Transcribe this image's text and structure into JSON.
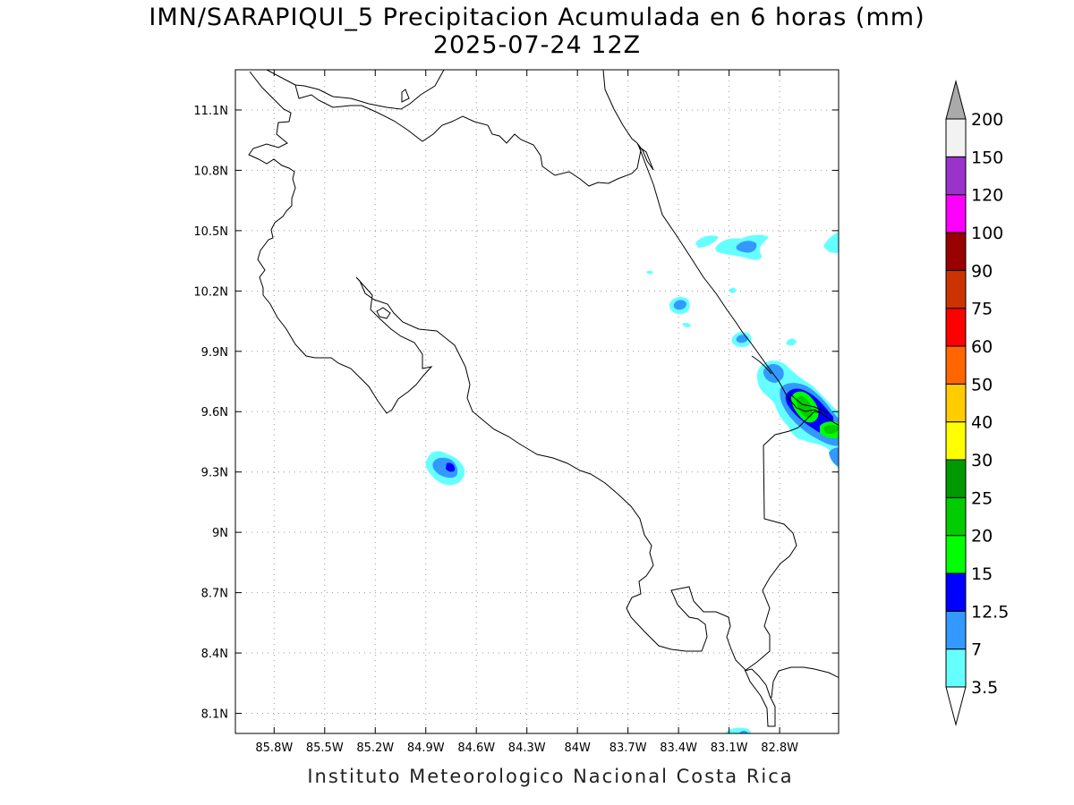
{
  "title": {
    "line1": "IMN/SARAPIQUI_5 Precipitacion Acumulada en 6 horas (mm)",
    "line2": "2025-07-24 12Z"
  },
  "footer": "Instituto Meteorologico Nacional Costa Rica",
  "map": {
    "lon_range": [
      -86.03,
      -82.45
    ],
    "lat_range": [
      8.0,
      11.3
    ],
    "lon_ticks": [
      {
        "value": -85.8,
        "label": "85.8W"
      },
      {
        "value": -85.5,
        "label": "85.5W"
      },
      {
        "value": -85.2,
        "label": "85.2W"
      },
      {
        "value": -84.9,
        "label": "84.9W"
      },
      {
        "value": -84.6,
        "label": "84.6W"
      },
      {
        "value": -84.3,
        "label": "84.3W"
      },
      {
        "value": -84.0,
        "label": "84W"
      },
      {
        "value": -83.7,
        "label": "83.7W"
      },
      {
        "value": -83.4,
        "label": "83.4W"
      },
      {
        "value": -83.1,
        "label": "83.1W"
      },
      {
        "value": -82.8,
        "label": "82.8W"
      }
    ],
    "lat_ticks": [
      {
        "value": 11.1,
        "label": "11.1N"
      },
      {
        "value": 10.8,
        "label": "10.8N"
      },
      {
        "value": 10.5,
        "label": "10.5N"
      },
      {
        "value": 10.2,
        "label": "10.2N"
      },
      {
        "value": 9.9,
        "label": "9.9N"
      },
      {
        "value": 9.6,
        "label": "9.6N"
      },
      {
        "value": 9.3,
        "label": "9.3N"
      },
      {
        "value": 9.0,
        "label": "9N"
      },
      {
        "value": 8.7,
        "label": "8.7N"
      },
      {
        "value": 8.4,
        "label": "8.4N"
      },
      {
        "value": 8.1,
        "label": "8.1N"
      }
    ],
    "grid": "dotted"
  },
  "colorbar": {
    "colors": [
      "#66ffff",
      "#3399ff",
      "#0000ff",
      "#00ff00",
      "#00cc00",
      "#009900",
      "#ffff00",
      "#ffcc00",
      "#ff6600",
      "#ff0000",
      "#cc3300",
      "#990000",
      "#ff00ff",
      "#9933cc",
      "#f2f2f2",
      "#aaaaaa"
    ],
    "labels": [
      "3.5",
      "7",
      "12.5",
      "15",
      "20",
      "25",
      "30",
      "40",
      "50",
      "60",
      "75",
      "90",
      "100",
      "120",
      "150",
      "200"
    ]
  },
  "chart_data": {
    "type": "heatmap",
    "title": "IMN/SARAPIQUI_5 Precipitacion Acumulada en 6 horas (mm)",
    "subtitle": "2025-07-24 12Z",
    "units": "mm",
    "levels": [
      3.5,
      7,
      12.5,
      15,
      20,
      25,
      30,
      40,
      50,
      60,
      75,
      90,
      100,
      120,
      150,
      200
    ],
    "features": [
      {
        "lon": -84.78,
        "lat": 9.32,
        "max_level": 12.5
      },
      {
        "lon": -83.4,
        "lat": 10.14,
        "max_level": 12.5
      },
      {
        "lon": -83.08,
        "lat": 10.43,
        "max_level": 7
      },
      {
        "lon": -83.28,
        "lat": 10.46,
        "max_level": 3.5
      },
      {
        "lon": -82.89,
        "lat": 9.8,
        "max_level": 12.5
      },
      {
        "lon": -82.7,
        "lat": 9.6,
        "max_level": 20
      },
      {
        "lon": -82.53,
        "lat": 9.5,
        "max_level": 20
      },
      {
        "lon": -82.94,
        "lat": 9.98,
        "max_level": 7
      },
      {
        "lon": -82.49,
        "lat": 10.45,
        "max_level": 3.5
      },
      {
        "lon": -83.04,
        "lat": 8.02,
        "max_level": 3.5
      }
    ]
  }
}
